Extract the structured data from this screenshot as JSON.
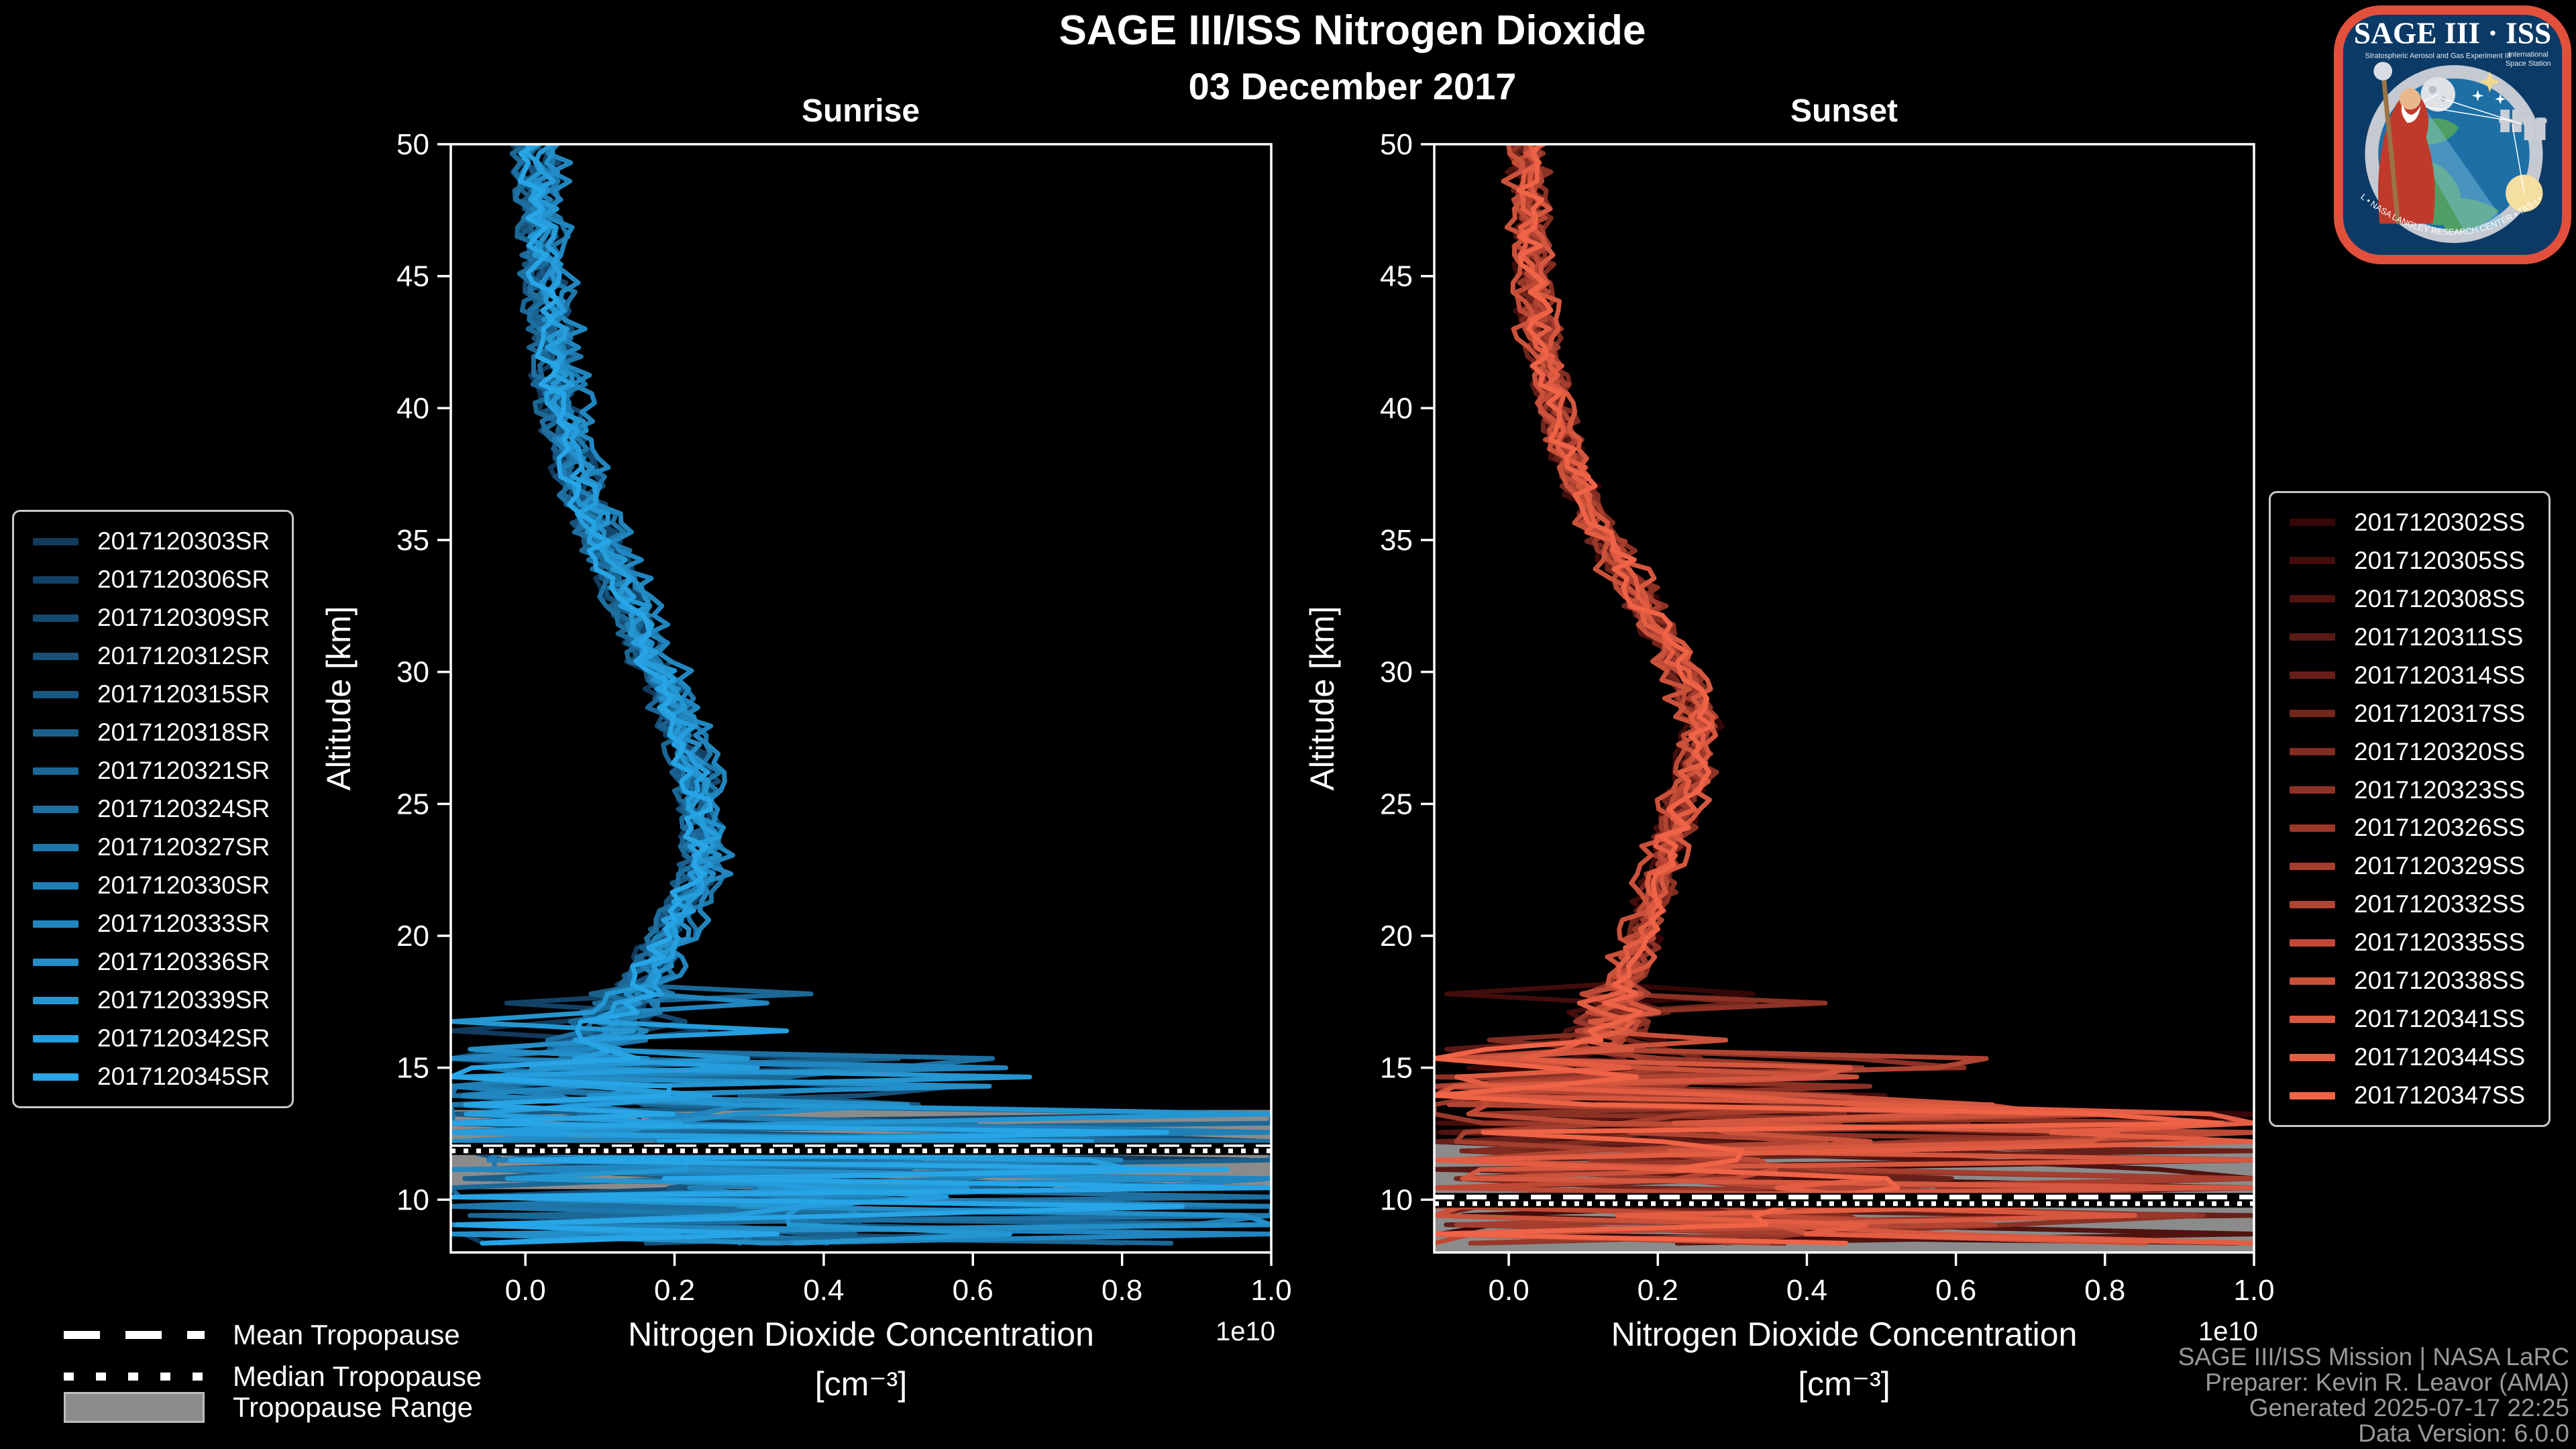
{
  "title": "SAGE III/ISS Nitrogen Dioxide",
  "subtitle": "03 December 2017",
  "tropopause_legend": {
    "mean_label": "Mean Tropopause",
    "median_label": "Median Tropopause",
    "range_label": "Tropopause Range",
    "range_color": "#8b8b8b"
  },
  "attribution": [
    "SAGE III/ISS Mission | NASA LaRC",
    "Preparer: Kevin R. Leavor (AMA)",
    "Generated 2025-07-17 22:25",
    "Data Version: 6.0.0"
  ],
  "logo": {
    "title": "SAGE III · ISS",
    "sub_left": "Stratospheric Aerosol and Gas Experiment III",
    "sub_right1": "International",
    "sub_right2": "Space Station",
    "ring_text": "BALL • NASA LANGLEY RESEARCH CENTER • TAS-I • ESA",
    "border_color": "#e2503c",
    "patch_color": "#0c3a66"
  },
  "chart_data": [
    {
      "type": "line",
      "panel": "Sunrise",
      "title": "Sunrise",
      "xlabel": "Nitrogen Dioxide Concentration",
      "xlabel_units": "[cm⁻³]",
      "x_offset_label": "1e10",
      "ylabel": "Altitude [km]",
      "xlim": [
        -0.1,
        1.0
      ],
      "ylim": [
        8,
        50
      ],
      "xticks": [
        0.0,
        0.2,
        0.4,
        0.6,
        0.8,
        1.0
      ],
      "yticks": [
        10,
        15,
        20,
        25,
        30,
        35,
        40,
        45,
        50
      ],
      "grid": false,
      "legend_position": "outside-left",
      "series_ids": [
        "2017120303SR",
        "2017120306SR",
        "2017120309SR",
        "2017120312SR",
        "2017120315SR",
        "2017120318SR",
        "2017120321SR",
        "2017120324SR",
        "2017120327SR",
        "2017120330SR",
        "2017120333SR",
        "2017120336SR",
        "2017120339SR",
        "2017120342SR",
        "2017120345SR"
      ],
      "color_gradient": [
        "#123a5c",
        "#27a5e6"
      ],
      "mean_profile_alt_km": [
        50,
        48,
        46,
        44,
        42,
        40,
        38,
        36,
        34,
        32,
        30,
        28,
        26,
        24,
        22,
        20,
        18,
        16,
        15,
        14,
        13,
        12,
        11,
        10,
        9,
        8
      ],
      "mean_profile_1e10": [
        0.02,
        0.028,
        0.03,
        0.038,
        0.045,
        0.055,
        0.07,
        0.095,
        0.125,
        0.155,
        0.185,
        0.215,
        0.235,
        0.25,
        0.235,
        0.2,
        0.16,
        0.1,
        0.09,
        0.12,
        0.17,
        0.22,
        0.26,
        0.33,
        0.38,
        0.33
      ],
      "noise_model": {
        "upper_sigma_1e10": 0.02,
        "mid_sigma_1e10": 0.05,
        "chaotic_below_km": 15.5,
        "spike_max_1e10": 1.0,
        "negative_clip_1e10": -0.1
      },
      "tropopause": {
        "mean_km": 12.0,
        "median_km": 11.85,
        "range_km": [
          10.4,
          13.4
        ]
      }
    },
    {
      "type": "line",
      "panel": "Sunset",
      "title": "Sunset",
      "xlabel": "Nitrogen Dioxide Concentration",
      "xlabel_units": "[cm⁻³]",
      "x_offset_label": "1e10",
      "ylabel": "Altitude [km]",
      "xlim": [
        -0.1,
        1.0
      ],
      "ylim": [
        8,
        50
      ],
      "xticks": [
        0.0,
        0.2,
        0.4,
        0.6,
        0.8,
        1.0
      ],
      "yticks": [
        10,
        15,
        20,
        25,
        30,
        35,
        40,
        45,
        50
      ],
      "grid": false,
      "legend_position": "outside-right",
      "series_ids": [
        "2017120302SS",
        "2017120305SS",
        "2017120308SS",
        "2017120311SS",
        "2017120314SS",
        "2017120317SS",
        "2017120320SS",
        "2017120323SS",
        "2017120326SS",
        "2017120329SS",
        "2017120332SS",
        "2017120335SS",
        "2017120338SS",
        "2017120341SS",
        "2017120344SS",
        "2017120347SS"
      ],
      "color_gradient": [
        "#360708",
        "#ef6347"
      ],
      "mean_profile_alt_km": [
        50,
        48,
        46,
        44,
        42,
        40,
        38,
        36,
        34,
        32,
        30,
        28,
        26,
        24,
        22,
        20,
        18,
        16,
        15,
        14,
        13,
        12,
        11,
        10,
        9,
        8
      ],
      "mean_profile_1e10": [
        0.02,
        0.025,
        0.03,
        0.035,
        0.045,
        0.06,
        0.08,
        0.11,
        0.15,
        0.19,
        0.23,
        0.26,
        0.245,
        0.22,
        0.2,
        0.18,
        0.15,
        0.12,
        0.1,
        0.14,
        0.19,
        0.24,
        0.28,
        0.34,
        0.4,
        0.35
      ],
      "noise_model": {
        "upper_sigma_1e10": 0.02,
        "mid_sigma_1e10": 0.05,
        "chaotic_below_km": 15.5,
        "spike_max_1e10": 1.0,
        "negative_clip_1e10": -0.1
      },
      "tropopause": {
        "mean_km": 10.1,
        "median_km": 9.85,
        "range_km": [
          8.0,
          12.15
        ]
      }
    }
  ]
}
